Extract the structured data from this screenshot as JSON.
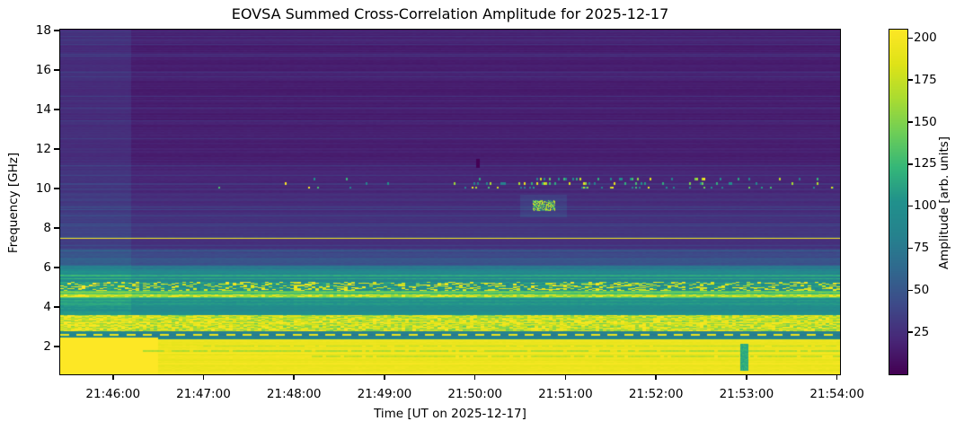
{
  "chart_data": {
    "type": "heatmap",
    "title": "EOVSA Summed Cross-Correlation Amplitude for 2025-12-17",
    "xlabel": "Time [UT on 2025-12-17]",
    "ylabel": "Frequency [GHz]",
    "colorbar_label": "Amplitude [arb. units]",
    "colormap": "viridis",
    "grid": false,
    "x_ticks": [
      "21:46:00",
      "21:47:00",
      "21:48:00",
      "21:49:00",
      "21:50:00",
      "21:51:00",
      "21:52:00",
      "21:53:00",
      "21:54:00"
    ],
    "y_ticks": [
      2,
      4,
      6,
      8,
      10,
      12,
      14,
      16,
      18
    ],
    "colorbar_ticks": [
      25,
      50,
      75,
      100,
      125,
      150,
      175,
      200
    ],
    "time_start": "21:45:25",
    "time_end": "21:54:02",
    "ylim": [
      0.6,
      18.05
    ],
    "vmin": 0,
    "vmax": 205,
    "viridis_stops": [
      [
        0.0,
        68,
        1,
        84
      ],
      [
        0.1,
        72,
        40,
        120
      ],
      [
        0.2,
        62,
        74,
        137
      ],
      [
        0.3,
        49,
        104,
        142
      ],
      [
        0.4,
        38,
        130,
        142
      ],
      [
        0.5,
        33,
        145,
        140
      ],
      [
        0.6,
        53,
        183,
        121
      ],
      [
        0.7,
        110,
        206,
        88
      ],
      [
        0.8,
        170,
        220,
        50
      ],
      [
        0.9,
        223,
        227,
        24
      ],
      [
        1.0,
        253,
        231,
        37
      ]
    ],
    "bands": [
      {
        "f_hi": 18.05,
        "f_lo": 11.2,
        "amp": 16,
        "stripe": 4,
        "noise": 1
      },
      {
        "f_hi": 11.2,
        "f_lo": 9.8,
        "amp": 20,
        "stripe": 4,
        "noise": 1
      },
      {
        "f_hi": 9.8,
        "f_lo": 8.1,
        "amp": 25,
        "stripe": 5,
        "noise": 1
      },
      {
        "f_hi": 8.1,
        "f_lo": 7.52,
        "amp": 30,
        "stripe": 4,
        "noise": 1
      },
      {
        "f_hi": 7.52,
        "f_lo": 7.44,
        "amp": 200,
        "stripe": 0,
        "noise": 0
      },
      {
        "f_hi": 7.44,
        "f_lo": 6.95,
        "amp": 25,
        "stripe": 4,
        "noise": 1
      },
      {
        "f_hi": 6.95,
        "f_lo": 6.5,
        "amp": 40,
        "stripe": 7,
        "noise": 2
      },
      {
        "f_hi": 6.5,
        "f_lo": 6.12,
        "amp": 52,
        "stripe": 8,
        "noise": 2
      },
      {
        "f_hi": 6.12,
        "f_lo": 5.85,
        "amp": 78,
        "stripe": 12,
        "noise": 3
      },
      {
        "f_hi": 5.85,
        "f_lo": 5.3,
        "amp": 88,
        "stripe": 10,
        "noise": 4
      },
      {
        "f_hi": 5.3,
        "f_lo": 4.82,
        "amp": 100,
        "stripe": 14,
        "noise": 12,
        "speckle": {
          "p": 0.3,
          "amp_min": 170,
          "amp_max": 205
        }
      },
      {
        "f_hi": 4.82,
        "f_lo": 4.66,
        "amp": 128,
        "stripe": 8,
        "noise": 6
      },
      {
        "f_hi": 4.66,
        "f_lo": 4.52,
        "amp": 160,
        "stripe": 6,
        "noise": 10,
        "speckle": {
          "p": 0.4,
          "amp_min": 185,
          "amp_max": 205
        }
      },
      {
        "f_hi": 4.52,
        "f_lo": 3.85,
        "amp": 103,
        "stripe": 9,
        "noise": 4
      },
      {
        "f_hi": 3.85,
        "f_lo": 3.58,
        "amp": 96,
        "stripe": 7,
        "noise": 3
      },
      {
        "f_hi": 3.58,
        "f_lo": 2.8,
        "amp": 163,
        "stripe": 12,
        "noise": 14,
        "speckle": {
          "p": 0.5,
          "amp_min": 180,
          "amp_max": 205
        }
      },
      {
        "f_hi": 2.8,
        "f_lo": 2.38,
        "amp": 82,
        "stripe": 7,
        "noise": 4
      },
      {
        "f_hi": 2.38,
        "f_lo": 0.6,
        "amp": 193,
        "stripe": 5,
        "noise": 3
      }
    ],
    "features": [
      {
        "type": "column_boost",
        "t_end": "21:46:12",
        "boost": 8
      },
      {
        "type": "bottom_left_block",
        "t_end": "21:46:30",
        "f_max": 2.45,
        "amp": 205
      },
      {
        "type": "speckle_rows",
        "rows": [
          10.48,
          10.26,
          10.05
        ],
        "row_height": 0.11,
        "t_start": "21:47:10",
        "t_dense": "21:49:45",
        "t_late": "21:52:45",
        "t_end": "21:53:58",
        "density_sparse": 0.025,
        "density_dense": 0.22,
        "density_late": 0.1,
        "amp_min": 80,
        "amp_max": 205
      },
      {
        "type": "blob",
        "t_start": "21:50:38",
        "t_end": "21:50:53",
        "f_hi": 9.4,
        "f_lo": 8.85,
        "density": 0.65,
        "amp_min": 110,
        "amp_max": 205,
        "halo_pad_s": 8,
        "halo_pad_f": 0.3,
        "halo_boost": 10
      },
      {
        "type": "dark_tick",
        "t_start": "21:50:01",
        "t_end": "21:50:03",
        "f_hi": 11.5,
        "f_lo": 11.05,
        "amp": 0
      },
      {
        "type": "dashed_line",
        "freq": 2.6,
        "thickness": 0.13,
        "dash_on_s": 6,
        "dash_off_s": 5,
        "amp": 195
      },
      {
        "type": "vstripe",
        "t_start": "21:52:56",
        "t_end": "21:53:01",
        "f_hi": 2.15,
        "f_lo": 0.8,
        "amp": 118
      },
      {
        "type": "texture_rows",
        "rows": [
          {
            "freq": 2.02,
            "thickness": 0.06,
            "amp": 170,
            "from": "21:47:00"
          },
          {
            "freq": 1.78,
            "thickness": 0.05,
            "amp": 166,
            "from": "21:46:20"
          },
          {
            "freq": 1.5,
            "thickness": 0.09,
            "amp": 173,
            "from": "21:48:10"
          }
        ]
      }
    ]
  }
}
